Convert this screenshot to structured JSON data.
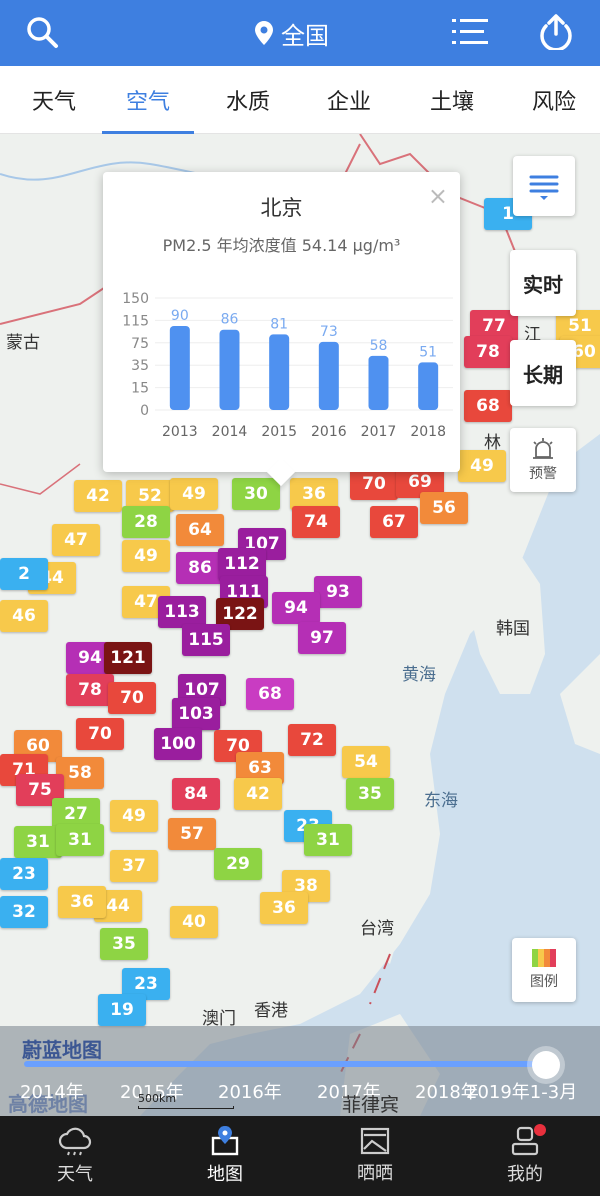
{
  "header": {
    "location": "全国"
  },
  "tabs": [
    {
      "label": "天气"
    },
    {
      "label": "空气"
    },
    {
      "label": "水质"
    },
    {
      "label": "企业"
    },
    {
      "label": "土壤"
    },
    {
      "label": "风险"
    }
  ],
  "colors": {
    "primary": "#3e7fe0"
  },
  "popup": {
    "city": "北京",
    "subtitle": "PM2.5 年均浓度值 54.14 µg/m³",
    "close": "×"
  },
  "chart_data": {
    "type": "bar",
    "categories": [
      "2013",
      "2014",
      "2015",
      "2016",
      "2017",
      "2018"
    ],
    "values": [
      90,
      86,
      81,
      73,
      58,
      51
    ],
    "yticks": [
      "150",
      "115",
      "75",
      "35",
      "15",
      "0"
    ],
    "ylim": [
      0,
      150
    ],
    "grid": true
  },
  "right_buttons": {
    "realtime": "实时",
    "longterm": "长期",
    "warning": "预警",
    "legend": "图例"
  },
  "map_labels": {
    "mongolia": "蒙古",
    "korea": "韩国",
    "yellow_sea": "黄海",
    "east_sea": "东海",
    "taiwan": "台湾",
    "hongkong": "香港",
    "macau": "澳门",
    "lin": "林",
    "jiang": "江",
    "philippines": "菲律宾"
  },
  "markers": [
    {
      "v": "1",
      "c": "#3ab0f0"
    },
    {
      "v": "77",
      "c": "#e23e5a"
    },
    {
      "v": "51",
      "c": "#f7c94b"
    },
    {
      "v": "78",
      "c": "#e23e5a"
    },
    {
      "v": "60",
      "c": "#f7c94b"
    },
    {
      "v": "68",
      "c": "#e8483c"
    },
    {
      "v": "49",
      "c": "#f7c94b"
    },
    {
      "v": "42",
      "c": "#f7c94b"
    },
    {
      "v": "52",
      "c": "#f7c94b"
    },
    {
      "v": "49",
      "c": "#f7c94b"
    },
    {
      "v": "30",
      "c": "#8ed444"
    },
    {
      "v": "36",
      "c": "#f7c94b"
    },
    {
      "v": "70",
      "c": "#e8483c"
    },
    {
      "v": "69",
      "c": "#e8483c"
    },
    {
      "v": "56",
      "c": "#f28a3a"
    },
    {
      "v": "28",
      "c": "#8ed444"
    },
    {
      "v": "64",
      "c": "#f28a3a"
    },
    {
      "v": "74",
      "c": "#e8483c"
    },
    {
      "v": "67",
      "c": "#e8483c"
    },
    {
      "v": "47",
      "c": "#f7c94b"
    },
    {
      "v": "107",
      "c": "#9a1e9e"
    },
    {
      "v": "49",
      "c": "#f7c94b"
    },
    {
      "v": "86",
      "c": "#b52fb5"
    },
    {
      "v": "112",
      "c": "#9a1e9e"
    },
    {
      "v": "44",
      "c": "#f7c94b"
    },
    {
      "v": "111",
      "c": "#9a1e9e"
    },
    {
      "v": "47",
      "c": "#f7c94b"
    },
    {
      "v": "93",
      "c": "#b52fb5"
    },
    {
      "v": "46",
      "c": "#f7c94b"
    },
    {
      "v": "113",
      "c": "#9a1e9e"
    },
    {
      "v": "122",
      "c": "#7a1414"
    },
    {
      "v": "94",
      "c": "#b52fb5"
    },
    {
      "v": "115",
      "c": "#9a1e9e"
    },
    {
      "v": "97",
      "c": "#b52fb5"
    },
    {
      "v": "94",
      "c": "#b52fb5"
    },
    {
      "v": "121",
      "c": "#7a1414"
    },
    {
      "v": "107",
      "c": "#9a1e9e"
    },
    {
      "v": "78",
      "c": "#e23e5a"
    },
    {
      "v": "70",
      "c": "#e8483c"
    },
    {
      "v": "107",
      "c": "#9a1e9e"
    },
    {
      "v": "68",
      "c": "#c93cc2"
    },
    {
      "v": "103",
      "c": "#9a1e9e"
    },
    {
      "v": "70",
      "c": "#e8483c"
    },
    {
      "v": "60",
      "c": "#f28a3a"
    },
    {
      "v": "100",
      "c": "#9a1e9e"
    },
    {
      "v": "70",
      "c": "#e8483c"
    },
    {
      "v": "72",
      "c": "#e8483c"
    },
    {
      "v": "71",
      "c": "#e8483c"
    },
    {
      "v": "58",
      "c": "#f28a3a"
    },
    {
      "v": "54",
      "c": "#f7c94b"
    },
    {
      "v": "75",
      "c": "#e23e5a"
    },
    {
      "v": "63",
      "c": "#f28a3a"
    },
    {
      "v": "84",
      "c": "#e23e5a"
    },
    {
      "v": "42",
      "c": "#f7c94b"
    },
    {
      "v": "35",
      "c": "#8ed444"
    },
    {
      "v": "49",
      "c": "#f7c94b"
    },
    {
      "v": "27",
      "c": "#8ed444"
    },
    {
      "v": "57",
      "c": "#f28a3a"
    },
    {
      "v": "31",
      "c": "#8ed444"
    },
    {
      "v": "31",
      "c": "#8ed444"
    },
    {
      "v": "23",
      "c": "#3ab0f0"
    },
    {
      "v": "37",
      "c": "#f7c94b"
    },
    {
      "v": "29",
      "c": "#8ed444"
    },
    {
      "v": "38",
      "c": "#f7c94b"
    },
    {
      "v": "36",
      "c": "#f7c94b"
    },
    {
      "v": "44",
      "c": "#f7c94b"
    },
    {
      "v": "32",
      "c": "#3ab0f0"
    },
    {
      "v": "40",
      "c": "#f7c94b"
    },
    {
      "v": "36",
      "c": "#f7c94b"
    },
    {
      "v": "35",
      "c": "#8ed444"
    },
    {
      "v": "23",
      "c": "#3ab0f0"
    },
    {
      "v": "19",
      "c": "#3ab0f0"
    },
    {
      "v": "2",
      "c": "#3ab0f0"
    },
    {
      "v": "23",
      "c": "#3ab0f0"
    },
    {
      "v": "31",
      "c": "#8ed444"
    }
  ],
  "timeline": {
    "years": [
      "2014年",
      "2015年",
      "2016年",
      "2017年",
      "2018年",
      "2019年1-3月"
    ],
    "watermark1": "蔚蓝地图",
    "watermark2": "高德地图",
    "scale": "500km",
    "progress": 1.0
  },
  "bottom_nav": [
    {
      "label": "天气"
    },
    {
      "label": "地图"
    },
    {
      "label": "晒晒"
    },
    {
      "label": "我的"
    }
  ]
}
